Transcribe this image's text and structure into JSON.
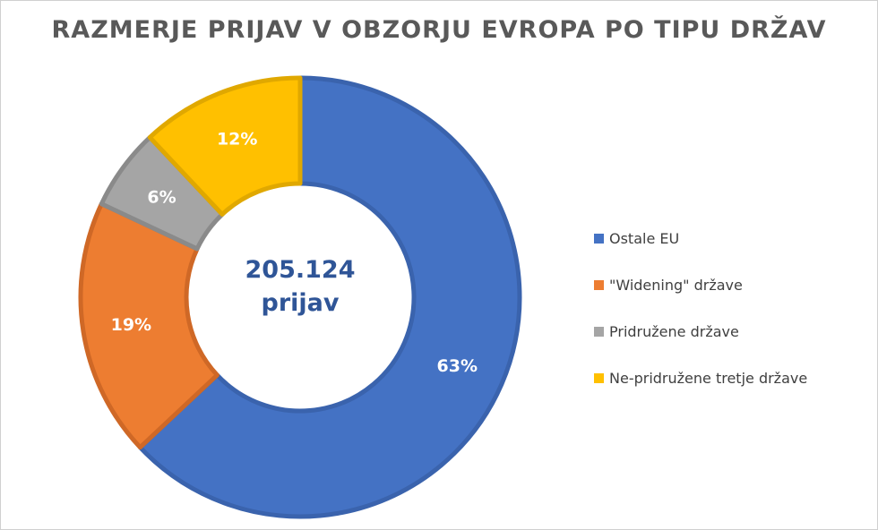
{
  "chart_data": {
    "type": "pie",
    "title": "RAZMERJE PRIJAV V OBZORJU EVROPA PO TIPU DRŽAV",
    "center_label": [
      "205.124",
      "prijav"
    ],
    "slices": [
      {
        "name": "Ostale EU",
        "value": 63,
        "label": "63%",
        "color": "#4472c4",
        "border": "#3a63ad"
      },
      {
        "name": "\"Widening\" države",
        "value": 19,
        "label": "19%",
        "color": "#ed7d31",
        "border": "#cf6826"
      },
      {
        "name": "Pridružene države",
        "value": 6,
        "label": "6%",
        "color": "#a5a5a5",
        "border": "#8a8a8a"
      },
      {
        "name": "Ne-pridružene tretje države",
        "value": 12,
        "label": "12%",
        "color": "#ffc000",
        "border": "#e0a800"
      }
    ],
    "legend_position": "right"
  }
}
